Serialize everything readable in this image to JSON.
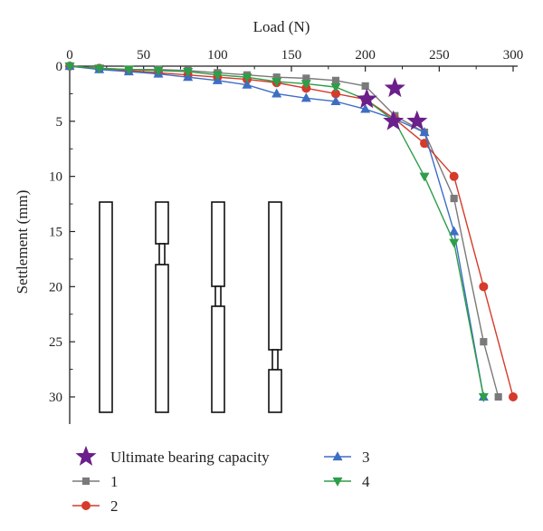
{
  "chart_data": {
    "type": "line",
    "xlabel": "Load (N)",
    "ylabel": "Settlement (mm)",
    "xlim": [
      0,
      300
    ],
    "ylim": [
      0,
      32
    ],
    "y_inverted": true,
    "x_axis_position": "top",
    "xticks": [
      "0",
      "50",
      "100",
      "150",
      "200",
      "250",
      "300"
    ],
    "yticks": [
      "0",
      "5",
      "10",
      "15",
      "20",
      "25",
      "30"
    ],
    "grid": false,
    "legend_position": "bottom",
    "series": [
      {
        "name": "1",
        "color": "#7a7a7a",
        "marker": "square",
        "x": [
          0,
          20,
          40,
          60,
          80,
          100,
          120,
          140,
          160,
          180,
          200,
          220,
          240,
          260,
          280,
          290
        ],
        "y": [
          0,
          0.2,
          0.3,
          0.3,
          0.4,
          0.6,
          0.8,
          1.0,
          1.1,
          1.3,
          1.8,
          4.5,
          6,
          12,
          25,
          30
        ]
      },
      {
        "name": "2",
        "color": "#d63a2a",
        "marker": "circle",
        "x": [
          0,
          20,
          40,
          60,
          80,
          100,
          120,
          140,
          160,
          180,
          200,
          220,
          240,
          260,
          280,
          300
        ],
        "y": [
          0,
          0.2,
          0.4,
          0.6,
          0.8,
          1.0,
          1.2,
          1.5,
          2.0,
          2.5,
          3.0,
          4.8,
          7,
          10,
          20,
          30
        ]
      },
      {
        "name": "3",
        "color": "#3e6ec4",
        "marker": "triangle-up",
        "x": [
          0,
          20,
          40,
          60,
          80,
          100,
          120,
          140,
          160,
          180,
          200,
          220,
          240,
          260,
          280
        ],
        "y": [
          0,
          0.3,
          0.5,
          0.7,
          1.0,
          1.3,
          1.7,
          2.5,
          2.9,
          3.2,
          3.9,
          4.8,
          6,
          15,
          30
        ]
      },
      {
        "name": "4",
        "color": "#2e9e48",
        "marker": "triangle-down",
        "x": [
          0,
          20,
          40,
          60,
          80,
          100,
          120,
          140,
          160,
          180,
          200,
          220,
          240,
          260,
          280
        ],
        "y": [
          0,
          0.2,
          0.3,
          0.4,
          0.5,
          0.8,
          1.0,
          1.4,
          1.6,
          1.9,
          3.0,
          5.0,
          10,
          16,
          30
        ]
      }
    ],
    "ultimate_bearing_capacity": {
      "name": "Ultimate bearing capacity",
      "color": "#6a1f8a",
      "marker": "star",
      "points": [
        {
          "x": 220,
          "y": 2
        },
        {
          "x": 201,
          "y": 3
        },
        {
          "x": 219,
          "y": 5
        },
        {
          "x": 235,
          "y": 5
        }
      ]
    },
    "legend": {
      "entries": [
        {
          "label": "Ultimate bearing capacity",
          "marker": "star",
          "color": "#6a1f8a"
        },
        {
          "label": "1",
          "marker": "square",
          "color": "#7a7a7a"
        },
        {
          "label": "2",
          "marker": "circle",
          "color": "#d63a2a"
        },
        {
          "label": "3",
          "marker": "triangle-up",
          "color": "#3e6ec4"
        },
        {
          "label": "4",
          "marker": "triangle-down",
          "color": "#2e9e48"
        }
      ]
    }
  }
}
